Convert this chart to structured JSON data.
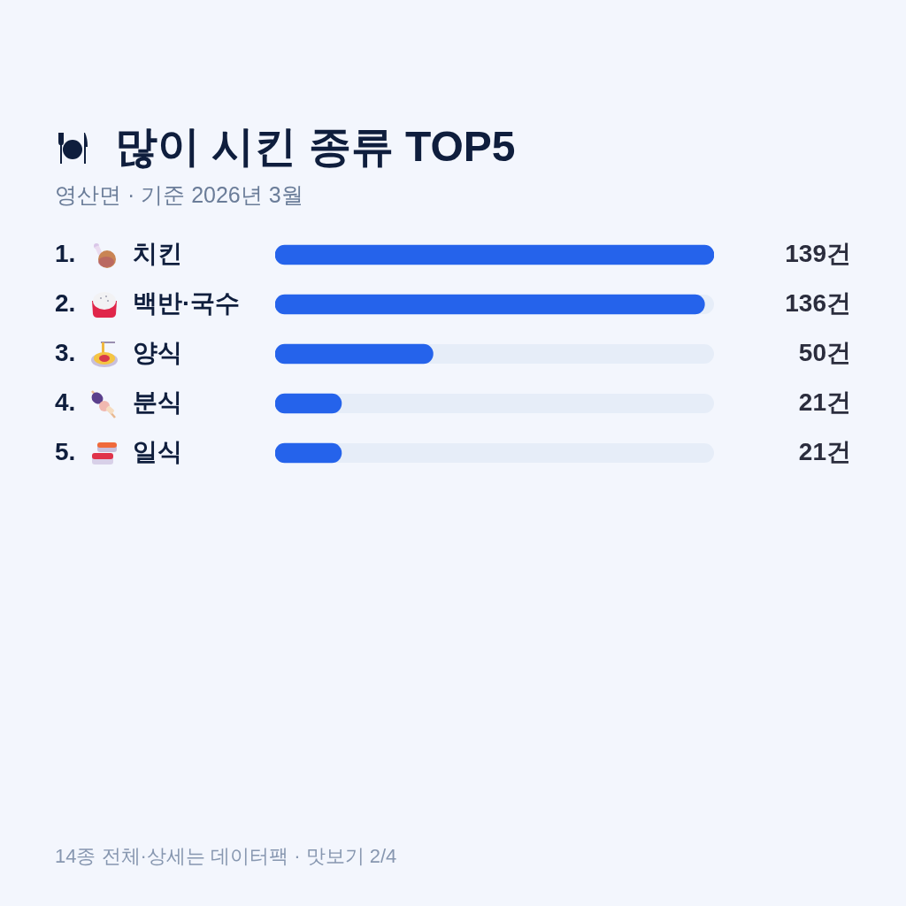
{
  "chart_data": {
    "type": "bar",
    "orientation": "horizontal",
    "title": "많이 시킨 종류 TOP5",
    "subtitle": "영산면 · 기준 2026년 3월",
    "categories": [
      "치킨",
      "백반·국수",
      "양식",
      "분식",
      "일식"
    ],
    "values": [
      139,
      136,
      50,
      21,
      21
    ],
    "color": "#2563eb",
    "value_labels": [
      "139건",
      "136건",
      "50건",
      "21건",
      "21건"
    ],
    "tick_labels": "y",
    "annotations": [
      "1.",
      "2.",
      "3.",
      "4.",
      "5.",
      "14종 전체·상세는 데이터팩 · 맛보기 2/4"
    ]
  }
}
